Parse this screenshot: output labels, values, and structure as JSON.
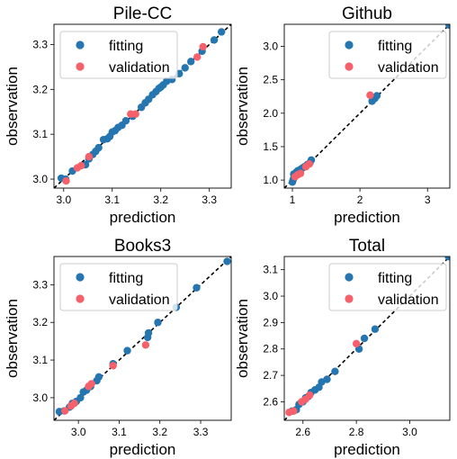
{
  "colors": {
    "fitting": "#2576b0",
    "validation": "#f5606a",
    "diagonal": "#000000"
  },
  "chart_data": [
    {
      "type": "scatter",
      "title": "Pile-CC",
      "xlabel": "prediction",
      "ylabel": "observation",
      "xlim": [
        2.98,
        3.345
      ],
      "ylim": [
        2.98,
        3.345
      ],
      "xticks": [
        3.0,
        3.1,
        3.2,
        3.3
      ],
      "yticks": [
        3.0,
        3.1,
        3.2,
        3.3
      ],
      "tick_format": "%.1f",
      "legend": {
        "placement": "upper-left",
        "entries": [
          "fitting",
          "validation"
        ]
      },
      "diagonal": [
        2.98,
        3.345
      ],
      "series": [
        {
          "name": "fitting",
          "color": "#2576b0",
          "points": [
            [
              2.995,
              3.002
            ],
            [
              3.004,
              3.0
            ],
            [
              3.018,
              3.018
            ],
            [
              3.045,
              3.032
            ],
            [
              3.052,
              3.045
            ],
            [
              3.06,
              3.055
            ],
            [
              3.066,
              3.062
            ],
            [
              3.072,
              3.07
            ],
            [
              3.082,
              3.088
            ],
            [
              3.09,
              3.09
            ],
            [
              3.095,
              3.095
            ],
            [
              3.1,
              3.105
            ],
            [
              3.106,
              3.108
            ],
            [
              3.112,
              3.115
            ],
            [
              3.12,
              3.12
            ],
            [
              3.128,
              3.13
            ],
            [
              3.142,
              3.14
            ],
            [
              3.16,
              3.16
            ],
            [
              3.168,
              3.17
            ],
            [
              3.175,
              3.178
            ],
            [
              3.183,
              3.188
            ],
            [
              3.19,
              3.195
            ],
            [
              3.196,
              3.202
            ],
            [
              3.2,
              3.205
            ],
            [
              3.205,
              3.21
            ],
            [
              3.212,
              3.218
            ],
            [
              3.223,
              3.222
            ],
            [
              3.238,
              3.235
            ],
            [
              3.25,
              3.248
            ],
            [
              3.262,
              3.262
            ],
            [
              3.285,
              3.285
            ],
            [
              3.31,
              3.31
            ],
            [
              3.325,
              3.328
            ]
          ]
        },
        {
          "name": "validation",
          "color": "#f5606a",
          "points": [
            [
              3.005,
              2.996
            ],
            [
              3.028,
              3.025
            ],
            [
              3.036,
              3.03
            ],
            [
              3.052,
              3.05
            ],
            [
              3.138,
              3.145
            ],
            [
              3.148,
              3.145
            ],
            [
              3.275,
              3.272
            ],
            [
              3.287,
              3.295
            ]
          ]
        }
      ]
    },
    {
      "type": "scatter",
      "title": "Github",
      "xlabel": "prediction",
      "ylabel": "observation",
      "xlim": [
        0.88,
        3.33
      ],
      "ylim": [
        0.88,
        3.33
      ],
      "xticks": [
        1,
        2,
        3
      ],
      "yticks": [
        1.0,
        1.5,
        2.0,
        2.5,
        3.0
      ],
      "ytick_format": "%.1f",
      "xtick_format": "%d",
      "legend": {
        "placement": "upper-right",
        "entries": [
          "fitting",
          "validation"
        ]
      },
      "diagonal": [
        0.88,
        3.33
      ],
      "series": [
        {
          "name": "fitting",
          "color": "#2576b0",
          "points": [
            [
              1.0,
              0.97
            ],
            [
              1.01,
              1.0
            ],
            [
              1.02,
              1.03
            ],
            [
              1.03,
              1.05
            ],
            [
              1.02,
              1.09
            ],
            [
              1.05,
              1.1
            ],
            [
              1.06,
              1.12
            ],
            [
              1.08,
              1.14
            ],
            [
              1.1,
              1.13
            ],
            [
              1.12,
              1.16
            ],
            [
              1.15,
              1.18
            ],
            [
              1.18,
              1.2
            ],
            [
              1.22,
              1.23
            ],
            [
              1.26,
              1.26
            ],
            [
              1.28,
              1.3
            ],
            [
              2.18,
              2.18
            ],
            [
              2.22,
              2.22
            ],
            [
              2.25,
              2.26
            ],
            [
              3.32,
              3.32
            ]
          ]
        },
        {
          "name": "validation",
          "color": "#f5606a",
          "points": [
            [
              1.04,
              1.05
            ],
            [
              1.08,
              1.08
            ],
            [
              1.12,
              1.1
            ],
            [
              1.2,
              1.2
            ],
            [
              1.25,
              1.24
            ],
            [
              2.15,
              2.27
            ]
          ]
        }
      ]
    },
    {
      "type": "scatter",
      "title": "Books3",
      "xlabel": "prediction",
      "ylabel": "observation",
      "xlim": [
        2.94,
        3.375
      ],
      "ylim": [
        2.94,
        3.375
      ],
      "xticks": [
        3.0,
        3.1,
        3.2,
        3.3
      ],
      "yticks": [
        3.0,
        3.1,
        3.2,
        3.3
      ],
      "tick_format": "%.1f",
      "legend": {
        "placement": "upper-left",
        "entries": [
          "fitting",
          "validation"
        ]
      },
      "diagonal": [
        2.94,
        3.375
      ],
      "series": [
        {
          "name": "fitting",
          "color": "#2576b0",
          "points": [
            [
              2.953,
              2.963
            ],
            [
              2.965,
              2.965
            ],
            [
              2.978,
              2.975
            ],
            [
              2.985,
              2.985
            ],
            [
              2.995,
              2.99
            ],
            [
              3.005,
              3.0
            ],
            [
              3.012,
              3.015
            ],
            [
              3.02,
              3.02
            ],
            [
              3.03,
              3.03
            ],
            [
              3.045,
              3.045
            ],
            [
              3.05,
              3.055
            ],
            [
              3.085,
              3.09
            ],
            [
              3.12,
              3.125
            ],
            [
              3.17,
              3.16
            ],
            [
              3.172,
              3.172
            ],
            [
              3.195,
              3.2
            ],
            [
              3.24,
              3.24
            ],
            [
              3.29,
              3.292
            ],
            [
              3.365,
              3.362
            ]
          ]
        },
        {
          "name": "validation",
          "color": "#f5606a",
          "points": [
            [
              2.967,
              2.965
            ],
            [
              2.982,
              2.978
            ],
            [
              2.99,
              2.985
            ],
            [
              3.025,
              3.03
            ],
            [
              3.032,
              3.037
            ],
            [
              3.085,
              3.085
            ],
            [
              3.165,
              3.14
            ]
          ]
        }
      ]
    },
    {
      "type": "scatter",
      "title": "Total",
      "xlabel": "prediction",
      "ylabel": "observation",
      "xlim": [
        2.53,
        3.15
      ],
      "ylim": [
        2.53,
        3.15
      ],
      "xticks": [
        2.6,
        2.8,
        3.0
      ],
      "yticks": [
        2.6,
        2.7,
        2.8,
        2.9,
        3.0,
        3.1
      ],
      "tick_format": "%.1f",
      "legend": {
        "placement": "upper-right",
        "entries": [
          "fitting",
          "validation"
        ]
      },
      "diagonal": [
        2.53,
        3.15
      ],
      "series": [
        {
          "name": "fitting",
          "color": "#2576b0",
          "points": [
            [
              2.56,
              2.565
            ],
            [
              2.575,
              2.57
            ],
            [
              2.585,
              2.59
            ],
            [
              2.6,
              2.6
            ],
            [
              2.61,
              2.615
            ],
            [
              2.62,
              2.62
            ],
            [
              2.63,
              2.635
            ],
            [
              2.645,
              2.645
            ],
            [
              2.66,
              2.655
            ],
            [
              2.67,
              2.675
            ],
            [
              2.69,
              2.685
            ],
            [
              2.72,
              2.715
            ],
            [
              2.81,
              2.8
            ],
            [
              2.83,
              2.84
            ],
            [
              2.87,
              2.875
            ],
            [
              3.145,
              3.15
            ]
          ]
        },
        {
          "name": "validation",
          "color": "#f5606a",
          "points": [
            [
              2.548,
              2.56
            ],
            [
              2.565,
              2.565
            ],
            [
              2.595,
              2.6
            ],
            [
              2.61,
              2.61
            ],
            [
              2.625,
              2.625
            ],
            [
              2.8,
              2.82
            ]
          ]
        }
      ]
    }
  ]
}
